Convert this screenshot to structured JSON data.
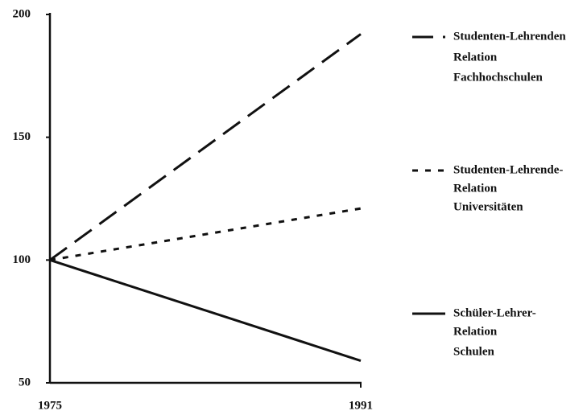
{
  "chart_data": {
    "type": "line",
    "categories": [
      "1975",
      "1991"
    ],
    "ylim": [
      50,
      200
    ],
    "yticks": [
      50,
      100,
      150,
      200
    ],
    "series": [
      {
        "name": [
          "Studenten-Lehrenden",
          "Relation",
          "Fachhochschulen"
        ],
        "color": "#111111",
        "style": "dashed",
        "values": [
          100,
          192
        ]
      },
      {
        "name": [
          "Studenten-Lehrende-",
          "Relation",
          "Universitäten"
        ],
        "color": "#111111",
        "style": "dotted",
        "values": [
          100,
          121
        ]
      },
      {
        "name": [
          "Schüler-Lehrer-",
          "Relation",
          "Schulen"
        ],
        "color": "#111111",
        "style": "solid",
        "values": [
          100,
          59
        ]
      }
    ]
  }
}
